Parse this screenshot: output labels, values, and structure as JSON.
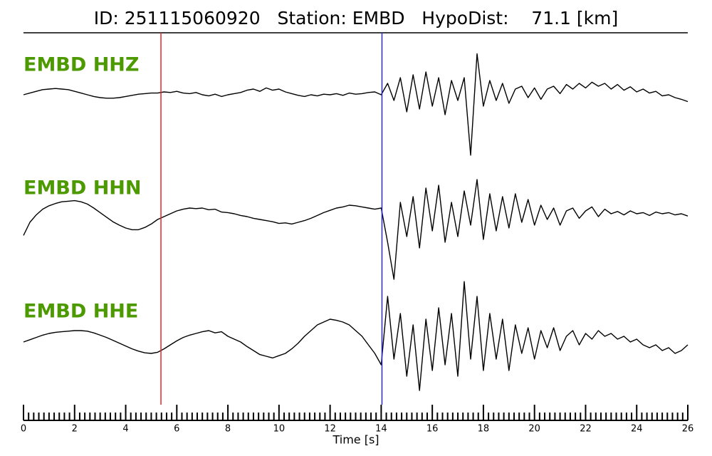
{
  "chart_data": {
    "type": "line",
    "title": "ID: 251115060920   Station: EMBD   HypoDist:    71.1 [km]",
    "x_label": "Time [s]",
    "xlim": [
      0,
      26
    ],
    "xticks": [
      0,
      2,
      4,
      6,
      8,
      10,
      12,
      14,
      16,
      18,
      20,
      22,
      24,
      26
    ],
    "xminorticks": [
      0.2,
      0.4,
      0.6,
      0.8,
      1,
      1.2,
      1.4,
      1.6,
      1.8,
      2.2,
      2.4,
      2.6,
      2.8,
      3,
      3.2,
      3.4,
      3.6,
      3.8,
      4.2,
      4.4,
      4.6,
      4.8,
      5,
      5.2,
      5.4,
      5.6,
      5.8,
      6.2,
      6.4,
      6.6,
      6.8,
      7,
      7.2,
      7.4,
      7.6,
      7.8,
      8.2,
      8.4,
      8.6,
      8.8,
      9,
      9.2,
      9.4,
      9.6,
      9.8,
      10.2,
      10.4,
      10.6,
      10.8,
      11,
      11.2,
      11.4,
      11.6,
      11.8,
      12.2,
      12.4,
      12.6,
      12.8,
      13,
      13.2,
      13.4,
      13.6,
      13.8,
      14.2,
      14.4,
      14.6,
      14.8,
      15,
      15.2,
      15.4,
      15.6,
      15.8,
      16.2,
      16.4,
      16.6,
      16.8,
      17,
      17.2,
      17.4,
      17.6,
      17.8,
      18.2,
      18.4,
      18.6,
      18.8,
      19,
      19.2,
      19.4,
      19.6,
      19.8,
      20.2,
      20.4,
      20.6,
      20.8,
      21,
      21.2,
      21.4,
      21.6,
      21.8,
      22.2,
      22.4,
      22.6,
      22.8,
      23,
      23.2,
      23.4,
      23.6,
      23.8,
      24.2,
      24.4,
      24.6,
      24.8,
      25,
      25.2,
      25.4,
      25.6,
      25.8
    ],
    "ylim": [
      -1.2,
      1.2
    ],
    "label_color": "#4c9a00",
    "line_color": "#000000",
    "markers": [
      {
        "x": 5.38,
        "color": "#e0282a"
      },
      {
        "x": 14.03,
        "color": "#2a2ad0"
      }
    ],
    "x": [
      0,
      0.25,
      0.5,
      0.75,
      1,
      1.25,
      1.5,
      1.75,
      2,
      2.25,
      2.5,
      2.75,
      3,
      3.25,
      3.5,
      3.75,
      4,
      4.25,
      4.5,
      4.75,
      5,
      5.25,
      5.5,
      5.75,
      6,
      6.25,
      6.5,
      6.75,
      7,
      7.25,
      7.5,
      7.75,
      8,
      8.25,
      8.5,
      8.75,
      9,
      9.25,
      9.5,
      9.75,
      10,
      10.25,
      10.5,
      10.75,
      11,
      11.25,
      11.5,
      11.75,
      12,
      12.25,
      12.5,
      12.75,
      13,
      13.25,
      13.5,
      13.75,
      14,
      14.25,
      14.5,
      14.75,
      15,
      15.25,
      15.5,
      15.75,
      16,
      16.25,
      16.5,
      16.75,
      17,
      17.25,
      17.5,
      17.75,
      18,
      18.25,
      18.5,
      18.75,
      19,
      19.25,
      19.5,
      19.75,
      20,
      20.25,
      20.5,
      20.75,
      21,
      21.25,
      21.5,
      21.75,
      22,
      22.25,
      22.5,
      22.75,
      23,
      23.25,
      23.5,
      23.75,
      24,
      24.25,
      24.5,
      24.75,
      25,
      25.25,
      25.5,
      25.75,
      26
    ],
    "series": [
      {
        "name": "EMBD HHZ",
        "values": [
          0,
          0.03,
          0.06,
          0.09,
          0.1,
          0.11,
          0.1,
          0.09,
          0.06,
          0.03,
          0,
          -0.03,
          -0.05,
          -0.06,
          -0.06,
          -0.05,
          -0.03,
          -0.01,
          0.01,
          0.02,
          0.03,
          0.03,
          0.05,
          0.04,
          0.06,
          0.03,
          0.02,
          0.04,
          0.0,
          -0.02,
          0.01,
          -0.03,
          0.0,
          0.02,
          0.04,
          0.08,
          0.1,
          0.06,
          0.12,
          0.08,
          0.1,
          0.05,
          0.02,
          -0.01,
          -0.03,
          0.0,
          -0.02,
          0.01,
          0.0,
          0.02,
          -0.01,
          0.03,
          0.01,
          0.02,
          0.04,
          0.05,
          0.0,
          0.2,
          -0.1,
          0.3,
          -0.3,
          0.35,
          -0.25,
          0.4,
          -0.2,
          0.3,
          -0.35,
          0.25,
          -0.1,
          0.3,
          -1.06,
          0.72,
          -0.2,
          0.25,
          -0.1,
          0.2,
          -0.15,
          0.1,
          0.15,
          -0.05,
          0.12,
          -0.08,
          0.1,
          0.15,
          0.02,
          0.18,
          0.1,
          0.2,
          0.12,
          0.22,
          0.15,
          0.2,
          0.1,
          0.18,
          0.08,
          0.14,
          0.05,
          0.1,
          0.03,
          0.06,
          -0.02,
          0.0,
          -0.05,
          -0.08,
          -0.12
        ]
      },
      {
        "name": "EMBD HHN",
        "values": [
          -0.38,
          -0.15,
          -0.02,
          0.08,
          0.14,
          0.18,
          0.21,
          0.22,
          0.23,
          0.21,
          0.17,
          0.1,
          0.02,
          -0.06,
          -0.14,
          -0.2,
          -0.25,
          -0.28,
          -0.28,
          -0.24,
          -0.18,
          -0.1,
          -0.05,
          0.0,
          0.05,
          0.08,
          0.1,
          0.09,
          0.1,
          0.07,
          0.08,
          0.03,
          0.02,
          0.0,
          -0.03,
          -0.05,
          -0.08,
          -0.1,
          -0.12,
          -0.14,
          -0.17,
          -0.16,
          -0.18,
          -0.15,
          -0.12,
          -0.08,
          -0.03,
          0.02,
          0.06,
          0.1,
          0.12,
          0.15,
          0.14,
          0.12,
          0.1,
          0.08,
          0.1,
          -0.5,
          -1.15,
          0.2,
          -0.4,
          0.3,
          -0.6,
          0.45,
          -0.3,
          0.5,
          -0.5,
          0.2,
          -0.4,
          0.4,
          -0.2,
          0.6,
          -0.45,
          0.35,
          -0.3,
          0.3,
          -0.25,
          0.35,
          -0.15,
          0.25,
          -0.2,
          0.15,
          -0.1,
          0.1,
          -0.2,
          0.05,
          0.1,
          -0.08,
          0.05,
          0.12,
          -0.05,
          0.08,
          0.0,
          0.04,
          -0.02,
          0.05,
          0.0,
          0.02,
          -0.03,
          0.03,
          0.0,
          0.02,
          -0.02,
          0.0,
          -0.04
        ]
      },
      {
        "name": "EMBD HHE",
        "values": [
          0.0,
          0.04,
          0.08,
          0.12,
          0.15,
          0.17,
          0.18,
          0.19,
          0.2,
          0.2,
          0.19,
          0.16,
          0.12,
          0.08,
          0.03,
          -0.02,
          -0.07,
          -0.12,
          -0.16,
          -0.19,
          -0.2,
          -0.18,
          -0.12,
          -0.05,
          0.02,
          0.08,
          0.12,
          0.15,
          0.18,
          0.2,
          0.16,
          0.18,
          0.1,
          0.05,
          0.0,
          -0.08,
          -0.15,
          -0.22,
          -0.25,
          -0.28,
          -0.24,
          -0.2,
          -0.12,
          -0.02,
          0.1,
          0.2,
          0.3,
          0.35,
          0.4,
          0.38,
          0.35,
          0.3,
          0.2,
          0.1,
          -0.05,
          -0.2,
          -0.4,
          0.8,
          -0.3,
          0.5,
          -0.6,
          0.3,
          -0.85,
          0.4,
          -0.5,
          0.6,
          -0.4,
          0.5,
          -0.6,
          1.06,
          -0.3,
          0.8,
          -0.5,
          0.5,
          -0.3,
          0.4,
          -0.5,
          0.3,
          -0.2,
          0.25,
          -0.3,
          0.2,
          -0.1,
          0.25,
          -0.15,
          0.1,
          0.2,
          -0.05,
          0.15,
          0.05,
          0.2,
          0.1,
          0.15,
          0.05,
          0.1,
          0.0,
          0.05,
          -0.05,
          -0.1,
          -0.05,
          -0.15,
          -0.1,
          -0.2,
          -0.15,
          -0.05
        ]
      }
    ]
  }
}
